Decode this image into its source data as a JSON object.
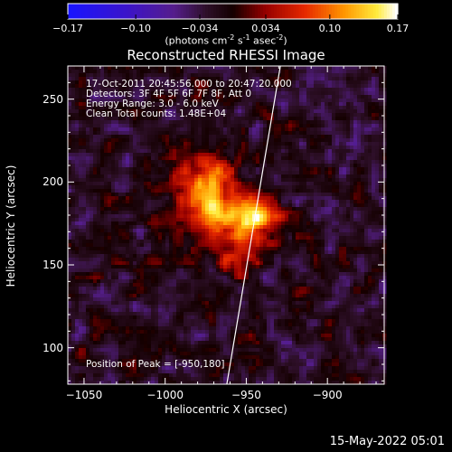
{
  "title": "Reconstructed RHESSI Image",
  "colorbar": {
    "ticks": [
      "-0.17",
      "-0.10",
      "-0.034",
      "0.034",
      "0.10",
      "0.17"
    ],
    "units_prefix": "(photons cm",
    "units_sup1": "-2",
    "units_mid1": " s",
    "units_sup2": "-1",
    "units_mid2": " asec",
    "units_sup3": "-2",
    "units_suffix": ")",
    "range": [
      -0.17,
      0.17
    ]
  },
  "info": {
    "line1": "17-Oct-2011 20:45:56.000 to 20:47:20.000",
    "line2": "Detectors: 3F 4F 5F 6F 7F 8F, Att 0",
    "line3": "Energy Range: 3.0 - 6.0 keV",
    "line4": "Clean    Total counts: 1.48E+04",
    "peak": "Position of Peak = [-950,180]"
  },
  "footer": {
    "timestamp": "15-May-2022 05:01"
  },
  "chart_data": {
    "type": "heatmap",
    "title": "Reconstructed RHESSI Image",
    "xlabel": "Heliocentric X (arcsec)",
    "ylabel": "Heliocentric Y (arcsec)",
    "xlim": [
      -1060,
      -865
    ],
    "ylim": [
      78,
      270
    ],
    "x_ticks": [
      -1050,
      -1000,
      -950,
      -900
    ],
    "y_ticks": [
      100,
      150,
      200,
      250
    ],
    "x_tick_labels": [
      "−1050",
      "−1000",
      "−950",
      "−900"
    ],
    "y_tick_labels": [
      "100",
      "150",
      "200",
      "250"
    ],
    "colormap": "blue-purple-red-yellow-white",
    "value_range": [
      -0.17,
      0.17
    ],
    "peak_position": [
      -950,
      180
    ],
    "limb_line": [
      [
        -962,
        78
      ],
      [
        -929,
        270
      ]
    ],
    "sources": [
      {
        "x": -950,
        "y": 180,
        "sigma": 12,
        "amp": 0.17
      },
      {
        "x": -975,
        "y": 183,
        "sigma": 9,
        "amp": 0.11
      },
      {
        "x": -970,
        "y": 205,
        "sigma": 10,
        "amp": 0.1
      },
      {
        "x": -990,
        "y": 200,
        "sigma": 10,
        "amp": 0.07
      },
      {
        "x": -960,
        "y": 155,
        "sigma": 9,
        "amp": 0.05
      },
      {
        "x": -1000,
        "y": 170,
        "sigma": 9,
        "amp": 0.04
      }
    ]
  },
  "colors": {
    "background": "#000000",
    "text": "#ffffff",
    "limb_line": "#ffffff"
  }
}
